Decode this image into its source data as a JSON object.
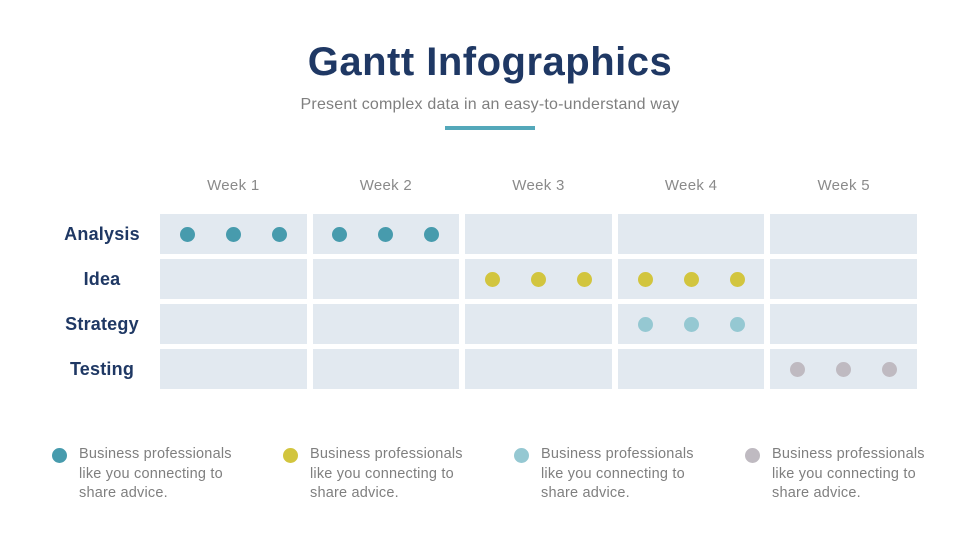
{
  "header": {
    "title": "Gantt Infographics",
    "subtitle": "Present complex data in an easy-to-understand way",
    "accent_color": "#54A8BA"
  },
  "chart_data": {
    "type": "gantt",
    "title": "Gantt Infographics",
    "subtitle": "Present complex data in an easy-to-understand way",
    "columns": [
      "Week 1",
      "Week 2",
      "Week 3",
      "Week 4",
      "Week 5"
    ],
    "rows": [
      {
        "label": "Analysis",
        "color": "#479BAD",
        "weeks": [
          1,
          2
        ]
      },
      {
        "label": "Idea",
        "color": "#D2C53E",
        "weeks": [
          3,
          4
        ]
      },
      {
        "label": "Strategy",
        "color": "#95C8D2",
        "weeks": [
          4
        ]
      },
      {
        "label": "Testing",
        "color": "#BFBAC1",
        "weeks": [
          5
        ]
      }
    ],
    "dots_per_cell": 3,
    "cell_background": "#E2E9F0",
    "label_color": "#1F3864",
    "week_label_color": "#8A8A8A",
    "grid": "cells-with-gaps",
    "legend_position": "bottom"
  },
  "legend": {
    "items": [
      {
        "color": "#479BAD",
        "text": "Business professionals like you connecting to share advice."
      },
      {
        "color": "#D2C53E",
        "text": "Business professionals like you connecting to share advice."
      },
      {
        "color": "#95C8D2",
        "text": "Business professionals like you connecting to share advice."
      },
      {
        "color": "#BFBAC1",
        "text": "Business professionals like you connecting to share advice."
      }
    ]
  }
}
